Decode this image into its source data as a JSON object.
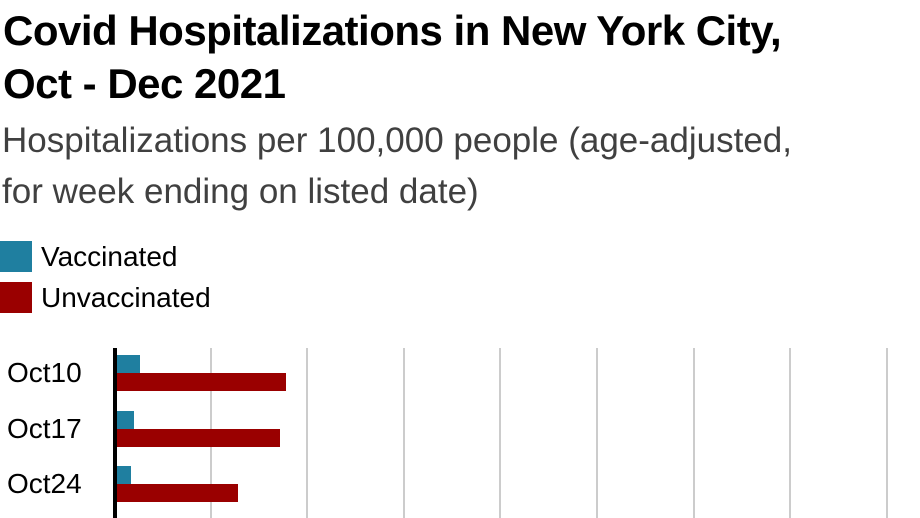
{
  "header": {
    "title_lines": [
      "Covid Hospitalizations in New York City,",
      "Oct - Dec 2021"
    ],
    "subtitle_lines": [
      "Hospitalizations per 100,000 people (age-adjusted,",
      "for week ending on listed date)"
    ]
  },
  "legend": {
    "items": [
      {
        "label": "Vaccinated",
        "color": "#1f7fa0"
      },
      {
        "label": "Unvaccinated",
        "color": "#9a0000"
      }
    ]
  },
  "chart_data": {
    "type": "bar",
    "orientation": "horizontal",
    "title": "Covid Hospitalizations in New York City, Oct - Dec 2021",
    "subtitle": "Hospitalizations per 100,000 people (age-adjusted, for week ending on listed date)",
    "categories": [
      "Oct10",
      "Oct17",
      "Oct24"
    ],
    "series": [
      {
        "name": "Vaccinated",
        "color": "#1f7fa0",
        "values": [
          2.4,
          1.8,
          1.4
        ]
      },
      {
        "name": "Unvaccinated",
        "color": "#9a0000",
        "values": [
          17.5,
          16.9,
          12.5
        ]
      }
    ],
    "xlim": [
      0,
      83
    ],
    "gridlines": [
      10,
      20,
      30,
      40,
      50,
      60,
      70,
      80
    ],
    "grid": "vertical-only, unlabeled (tick labels cropped out of view)",
    "legend_position": "above-chart-left",
    "visible_rows_note": "chart is cropped at the bottom edge of the screenshot after the Oct24 row"
  },
  "colors": {
    "title_text": "#000000",
    "subtitle_text": "#404040",
    "axis": "#000000",
    "gridline": "#cccccc",
    "vaccinated": "#1f7fa0",
    "unvaccinated": "#9a0000",
    "background": "#ffffff"
  }
}
